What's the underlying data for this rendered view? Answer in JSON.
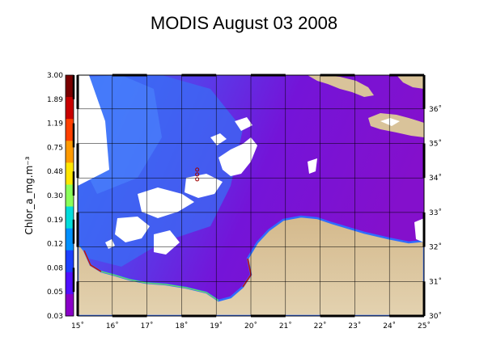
{
  "title": "MODIS August 03 2008",
  "colorbar": {
    "unit_label": "Chlor_a_mg.m⁻³",
    "ticks": [
      "3.00",
      "1.89",
      "1.19",
      "0.75",
      "0.48",
      "0.30",
      "0.19",
      "0.12",
      "0.08",
      "0.05",
      "0.03"
    ],
    "colors": [
      "#7a0000",
      "#c80000",
      "#ff4000",
      "#ff9a00",
      "#ffe600",
      "#8aff5a",
      "#00dcdc",
      "#0090ff",
      "#1c40ff",
      "#5010ff",
      "#8a00c8"
    ]
  },
  "map": {
    "lon_range": [
      15,
      25
    ],
    "lat_range": [
      30,
      37
    ],
    "lon_labels": [
      "15˚",
      "16˚",
      "17˚",
      "18˚",
      "19˚",
      "20˚",
      "21˚",
      "22˚",
      "23˚",
      "24˚",
      "25˚"
    ],
    "lat_labels": [
      "30˚",
      "31˚",
      "32˚",
      "33˚",
      "34˚",
      "35˚",
      "36˚"
    ],
    "marker": {
      "lon": 18.45,
      "lat": 34.1
    },
    "colors": {
      "sea": "#7a0fd8",
      "sea_light": "#5a3cf0",
      "coastal_blue": "#2f6cff",
      "land": "#d9c39a",
      "land_dark": "#c9ad80",
      "cloud": "#ffffff",
      "grid": "#000000"
    }
  }
}
